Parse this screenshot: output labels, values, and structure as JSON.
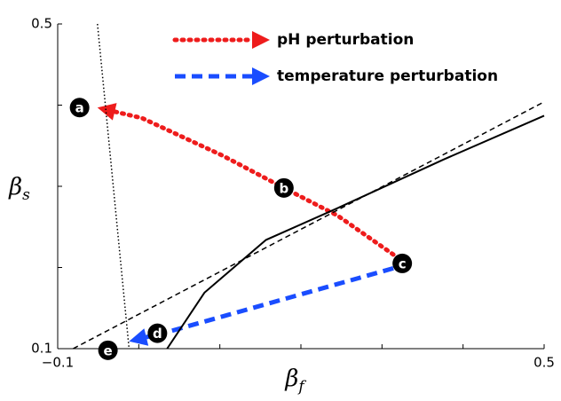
{
  "chart_data": {
    "type": "line",
    "xlabel": {
      "symbol": "β",
      "subscript": "f"
    },
    "ylabel": {
      "symbol": "β",
      "subscript": "s"
    },
    "xlim": [
      -0.1,
      0.5
    ],
    "ylim": [
      0.1,
      0.5
    ],
    "xticks": [
      {
        "value": -0.1,
        "label": "−0.1"
      },
      0.5
    ],
    "yticks": [
      0.1,
      0.5
    ],
    "xminor_ticks": [
      0,
      0.1,
      0.2,
      0.3,
      0.4
    ],
    "yminor_ticks": [
      0.2,
      0.3,
      0.4
    ],
    "series": [
      {
        "name": "pH perturbation",
        "color": "#ee1c1c",
        "style": "dotted",
        "arrow": true,
        "legend": true,
        "x": [
          0.314,
          0.245,
          0.179,
          0.103,
          0.004,
          -0.051
        ],
        "values": [
          0.216,
          0.264,
          0.298,
          0.338,
          0.384,
          0.397
        ]
      },
      {
        "name": "temperature perturbation",
        "color": "#1a4dff",
        "style": "dashed",
        "arrow": true,
        "legend": true,
        "x": [
          0.314,
          0.037,
          -0.012
        ],
        "values": [
          0.199,
          0.121,
          0.109
        ]
      },
      {
        "color": "#000000",
        "style": "solid",
        "x": [
          0.035,
          0.081,
          0.157,
          0.245,
          0.376,
          0.5
        ],
        "values": [
          0.1,
          0.169,
          0.234,
          0.273,
          0.333,
          0.387
        ]
      },
      {
        "color": "#000000",
        "style": "thin-dashed",
        "x": [
          -0.081,
          0.5
        ],
        "values": [
          0.1,
          0.404
        ]
      },
      {
        "color": "#000000",
        "style": "thin-dotted",
        "x": [
          -0.051,
          -0.012
        ],
        "values": [
          0.5,
          0.1
        ]
      }
    ],
    "annotations": [
      {
        "text": "a",
        "x": -0.073,
        "y": 0.397
      },
      {
        "text": "b",
        "x": 0.179,
        "y": 0.298
      },
      {
        "text": "c",
        "x": 0.325,
        "y": 0.205
      },
      {
        "text": "d",
        "x": 0.023,
        "y": 0.119
      },
      {
        "text": "e",
        "x": -0.038,
        "y": 0.098
      }
    ]
  }
}
